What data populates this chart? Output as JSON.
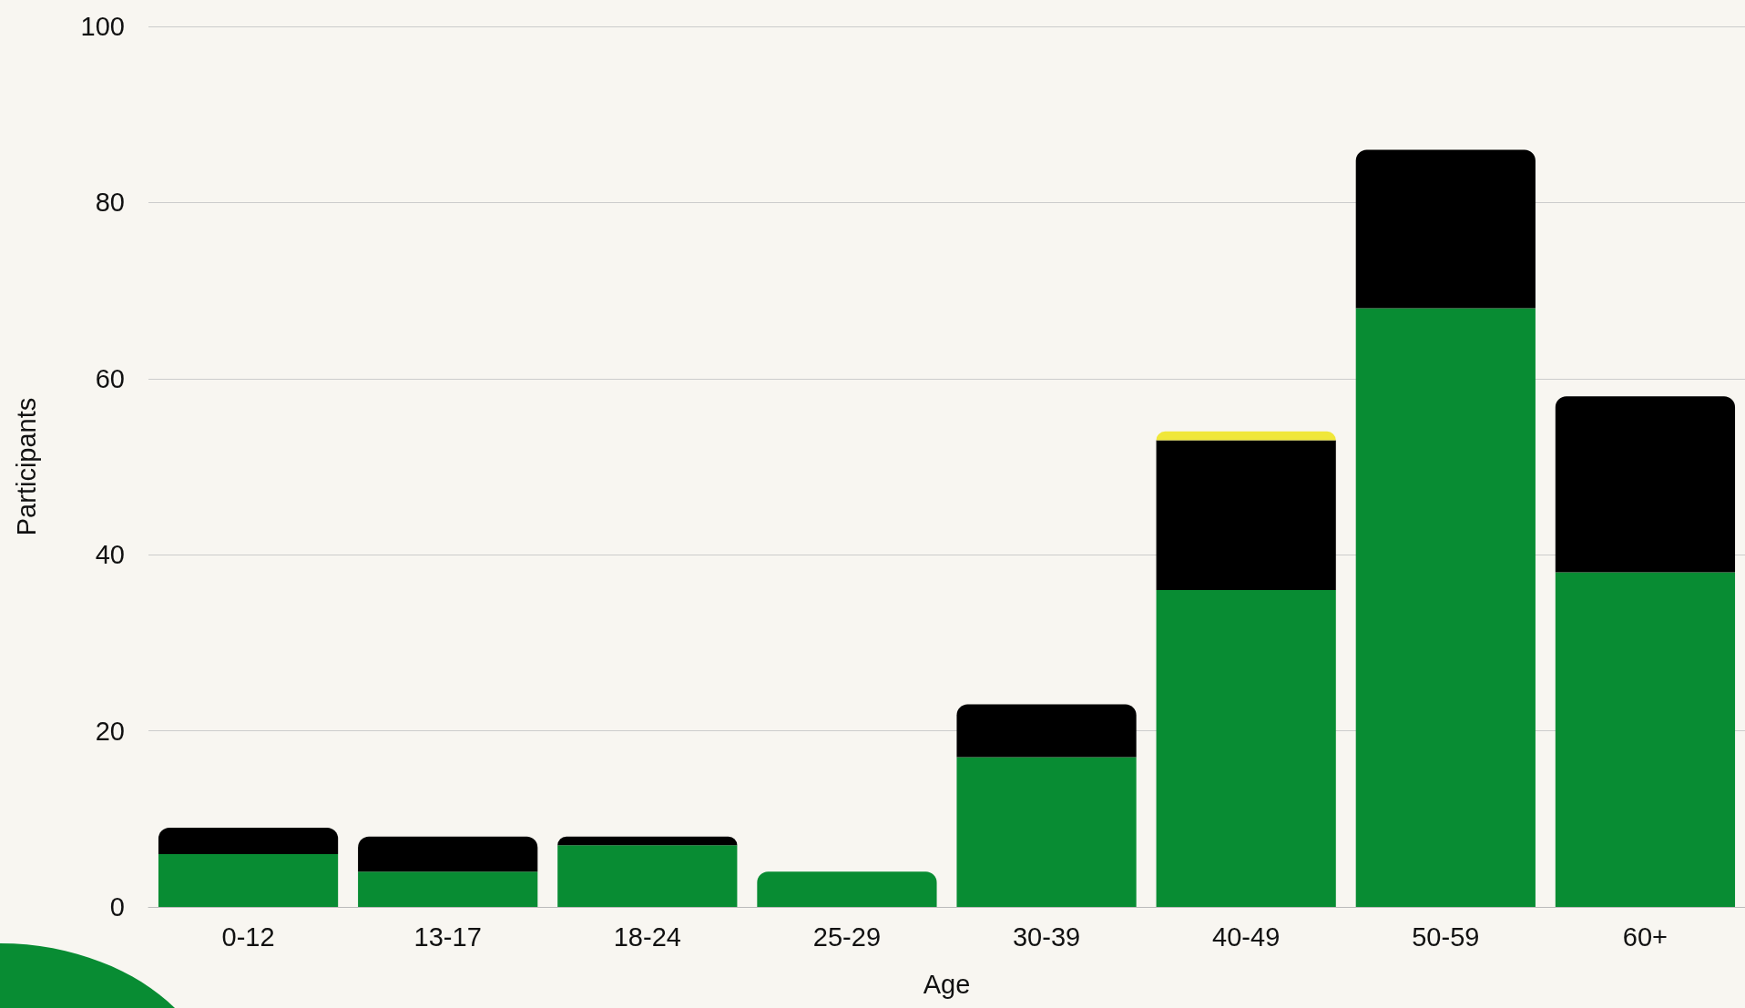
{
  "chart_data": {
    "type": "bar",
    "stacked": true,
    "xlabel": "Age",
    "ylabel": "Participants",
    "categories": [
      "0-12",
      "13-17",
      "18-24",
      "25-29",
      "30-39",
      "40-49",
      "50-59",
      "60+"
    ],
    "series": [
      {
        "color": "#088c33",
        "values": [
          6,
          4,
          7,
          4,
          17,
          36,
          68,
          38
        ]
      },
      {
        "color": "#000000",
        "values": [
          3,
          4,
          1,
          0,
          6,
          17,
          18,
          20
        ]
      },
      {
        "color": "#f0e73a",
        "values": [
          0,
          0,
          0,
          0,
          0,
          1,
          0,
          0
        ]
      }
    ],
    "ylim": [
      0,
      100
    ],
    "yticks": [
      0,
      20,
      40,
      60,
      80,
      100
    ],
    "grid": "y"
  }
}
